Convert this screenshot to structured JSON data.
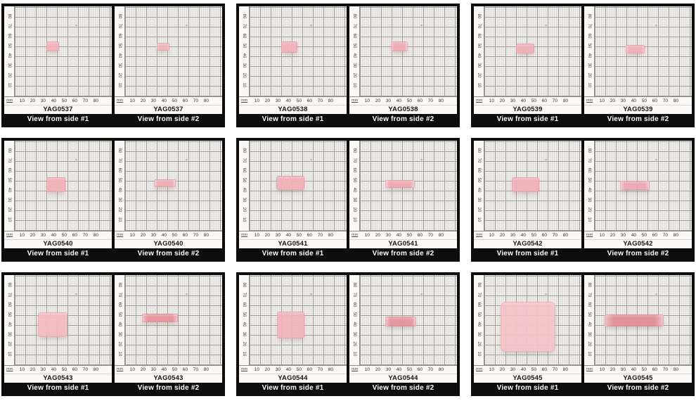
{
  "figure": {
    "description": "Photo montage of nine pink crystal samples on millimeter graph paper, two views per sample"
  },
  "ruler": {
    "unit_label": "mm",
    "x_ticks": [
      10,
      20,
      30,
      40,
      50,
      60,
      70,
      80
    ],
    "y_ticks": [
      80,
      70,
      60,
      50,
      40,
      30,
      20,
      10
    ]
  },
  "colors": {
    "panel_frame": "#0d0d0d",
    "paper": "#f4f3f0",
    "grid_major": "#9d9c9a",
    "grid_minor": "#dedcd8",
    "caption_bg": "#0d0d0d",
    "caption_text": "#ffffff",
    "sample_pink_light": "#f2b4ba",
    "sample_pink_dark": "#e6959d"
  },
  "panels": [
    {
      "id": "YAG0537",
      "views": [
        {
          "caption": "View from side #1",
          "sample": {
            "x_mm": 30,
            "y_mm": 44,
            "w_mm": 12,
            "h_mm": 10,
            "color": "#f0b2b8",
            "corner_radius": 2,
            "opacity": 0.93
          }
        },
        {
          "caption": "View from side #2",
          "sample": {
            "x_mm": 30,
            "y_mm": 45,
            "w_mm": 12,
            "h_mm": 8,
            "color": "#f1b4ba",
            "edge_color": "#f5ccd0",
            "corner_radius": 2,
            "opacity": 0.93
          }
        }
      ]
    },
    {
      "id": "YAG0538",
      "views": [
        {
          "caption": "View from side #1",
          "sample": {
            "x_mm": 30,
            "y_mm": 43,
            "w_mm": 15,
            "h_mm": 11,
            "color": "#f0b0b7",
            "corner_radius": 2,
            "opacity": 0.93
          }
        },
        {
          "caption": "View from side #2",
          "sample": {
            "x_mm": 29,
            "y_mm": 44,
            "w_mm": 16,
            "h_mm": 10,
            "color": "#efacb4",
            "edge_color": "#f4c7cc",
            "corner_radius": 2,
            "opacity": 0.93
          }
        }
      ]
    },
    {
      "id": "YAG0539",
      "views": [
        {
          "caption": "View from side #1",
          "sample": {
            "x_mm": 30,
            "y_mm": 42,
            "w_mm": 17,
            "h_mm": 10,
            "color": "#f0afb6",
            "corner_radius": 2,
            "opacity": 0.93
          }
        },
        {
          "caption": "View from side #2",
          "sample": {
            "x_mm": 29,
            "y_mm": 42,
            "w_mm": 18,
            "h_mm": 9,
            "color": "#f0aeb5",
            "edge_color": "#f4c7cc",
            "corner_radius": 2,
            "opacity": 0.93
          }
        }
      ]
    },
    {
      "id": "YAG0540",
      "views": [
        {
          "caption": "View from side #1",
          "sample": {
            "x_mm": 30,
            "y_mm": 38,
            "w_mm": 18,
            "h_mm": 15,
            "color": "#f1b1b8",
            "corner_radius": 2,
            "opacity": 0.93
          }
        },
        {
          "caption": "View from side #2",
          "sample": {
            "x_mm": 27,
            "y_mm": 43,
            "w_mm": 21,
            "h_mm": 8,
            "color": "#efabb3",
            "edge_color": "#f4cdd1",
            "corner_radius": 2,
            "opacity": 0.93
          }
        }
      ]
    },
    {
      "id": "YAG0541",
      "views": [
        {
          "caption": "View from side #1",
          "sample": {
            "x_mm": 25,
            "y_mm": 40,
            "w_mm": 27,
            "h_mm": 14,
            "color": "#f1b0b7",
            "corner_radius": 3,
            "opacity": 0.93
          }
        },
        {
          "caption": "View from side #2",
          "sample": {
            "x_mm": 24,
            "y_mm": 42,
            "w_mm": 28,
            "h_mm": 8,
            "color": "#eda7b0",
            "edge_color": "#f4cdd1",
            "corner_radius": 2,
            "opacity": 0.94
          }
        }
      ]
    },
    {
      "id": "YAG0542",
      "views": [
        {
          "caption": "View from side #1",
          "sample": {
            "x_mm": 26,
            "y_mm": 38,
            "w_mm": 26,
            "h_mm": 15,
            "color": "#f1b0b7",
            "corner_radius": 3,
            "opacity": 0.93
          }
        },
        {
          "caption": "View from side #2",
          "sample": {
            "x_mm": 24,
            "y_mm": 40,
            "w_mm": 28,
            "h_mm": 9,
            "color": "#eda7b0",
            "edge_color": "#f4cdd1",
            "corner_radius": 2,
            "opacity": 0.94
          }
        }
      ]
    },
    {
      "id": "YAG0543",
      "views": [
        {
          "caption": "View from side #1",
          "sample": {
            "x_mm": 22,
            "y_mm": 27,
            "w_mm": 28,
            "h_mm": 25,
            "color": "#f3bbc0",
            "corner_radius": 4,
            "opacity": 0.92
          }
        },
        {
          "caption": "View from side #2",
          "sample": {
            "x_mm": 16,
            "y_mm": 42,
            "w_mm": 34,
            "h_mm": 9,
            "color": "#e6959d",
            "edge_color": "#f2c2c7",
            "corner_radius": 2,
            "opacity": 0.96
          }
        }
      ]
    },
    {
      "id": "YAG0544",
      "views": [
        {
          "caption": "View from side #1",
          "sample": {
            "x_mm": 26,
            "y_mm": 26,
            "w_mm": 26,
            "h_mm": 27,
            "color": "#f2b5bb",
            "corner_radius": 3,
            "opacity": 0.92
          }
        },
        {
          "caption": "View from side #2",
          "sample": {
            "x_mm": 24,
            "y_mm": 38,
            "w_mm": 29,
            "h_mm": 10,
            "color": "#e6959d",
            "edge_color": "#f2c2c7",
            "corner_radius": 2,
            "opacity": 0.96
          }
        }
      ]
    },
    {
      "id": "YAG0545",
      "views": [
        {
          "caption": "View from side #1",
          "sample": {
            "x_mm": 15,
            "y_mm": 12,
            "w_mm": 52,
            "h_mm": 51,
            "color": "#f6c3c6",
            "corner_radius": 7,
            "opacity": 0.9
          }
        },
        {
          "caption": "View from side #2",
          "sample": {
            "x_mm": 9,
            "y_mm": 38,
            "w_mm": 56,
            "h_mm": 12,
            "color": "#e28f98",
            "edge_color": "#f0bfc4",
            "corner_radius": 2,
            "opacity": 0.96
          }
        }
      ]
    }
  ]
}
